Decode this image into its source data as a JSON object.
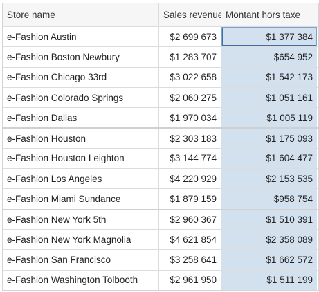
{
  "table": {
    "columns": [
      "Store name",
      "Sales revenue",
      "Montant hors taxe"
    ],
    "rows": [
      {
        "store": "e-Fashion Austin",
        "sales": "$2 699 673",
        "montant": "$1 377 384"
      },
      {
        "store": "e-Fashion Boston Newbury",
        "sales": "$1 283 707",
        "montant": "$654 952"
      },
      {
        "store": "e-Fashion Chicago 33rd",
        "sales": "$3 022 658",
        "montant": "$1 542 173"
      },
      {
        "store": "e-Fashion Colorado Springs",
        "sales": "$2 060 275",
        "montant": "$1 051 161"
      },
      {
        "store": "e-Fashion Dallas",
        "sales": "$1 970 034",
        "montant": "$1 005 119"
      },
      {
        "store": "e-Fashion Houston",
        "sales": "$2 303 183",
        "montant": "$1 175 093"
      },
      {
        "store": "e-Fashion Houston Leighton",
        "sales": "$3 144 774",
        "montant": "$1 604 477"
      },
      {
        "store": "e-Fashion Los Angeles",
        "sales": "$4 220 929",
        "montant": "$2 153 535"
      },
      {
        "store": "e-Fashion Miami Sundance",
        "sales": "$1 879 159",
        "montant": "$958 754"
      },
      {
        "store": "e-Fashion New York 5th",
        "sales": "$2 960 367",
        "montant": "$1 510 391"
      },
      {
        "store": "e-Fashion New York Magnolia",
        "sales": "$4 621 854",
        "montant": "$2 358 089"
      },
      {
        "store": "e-Fashion San Francisco",
        "sales": "$3 258 641",
        "montant": "$1 662 572"
      },
      {
        "store": "e-Fashion Washington Tolbooth",
        "sales": "$2 961 950",
        "montant": "$1 511 199"
      }
    ]
  },
  "colors": {
    "highlight_column": "#d3e0ee",
    "selection_border": "#3e6fa8"
  }
}
